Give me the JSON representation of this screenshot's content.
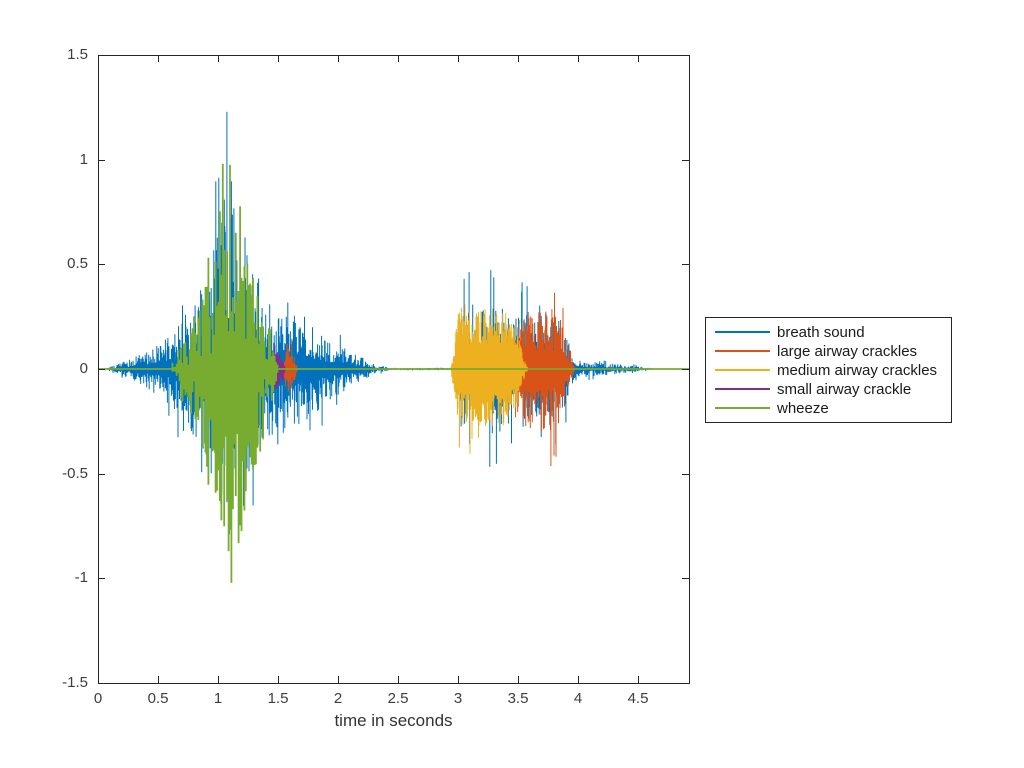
{
  "window": {
    "background": "#ffffff"
  },
  "chart_data": {
    "type": "line",
    "subtype": "audio-waveform",
    "title": "",
    "xlabel": "time in seconds",
    "ylabel": "",
    "xlim": [
      0,
      4.925
    ],
    "ylim": [
      -1.5,
      1.5
    ],
    "grid": false,
    "axis_color": "#262626",
    "tick_label_color": "#3d3d3d",
    "xticks": [
      0,
      0.5,
      1,
      1.5,
      2,
      2.5,
      3,
      3.5,
      4,
      4.5
    ],
    "xtick_labels": [
      "0",
      "0.5",
      "1",
      "1.5",
      "2",
      "2.5",
      "3",
      "3.5",
      "4",
      "4.5"
    ],
    "yticks": [
      -1.5,
      -1,
      -0.5,
      0,
      0.5,
      1,
      1.5
    ],
    "ytick_labels": [
      "-1.5",
      "-1",
      "-0.5",
      "0",
      "0.5",
      "1",
      "1.5"
    ],
    "legend": {
      "position": "right-outside",
      "border_color": "#262626",
      "background": "#ffffff"
    },
    "series": [
      {
        "name": "breath sound",
        "color": "#0072BD",
        "line_width": 1,
        "sample_step": 0.0042,
        "seed": 7,
        "body_min": 0.22,
        "shape": 2.2,
        "spike_prob": 0.035,
        "spike_gain": 1.35,
        "bottom_gain": 1.0,
        "max_amp": 1.23,
        "envelope_segments": [
          [
            [
              0.07,
              0.005
            ],
            [
              0.2,
              0.03
            ],
            [
              0.3,
              0.055
            ],
            [
              0.4,
              0.09
            ],
            [
              0.5,
              0.13
            ],
            [
              0.6,
              0.17
            ],
            [
              0.68,
              0.22
            ],
            [
              0.75,
              0.3
            ],
            [
              0.82,
              0.36
            ],
            [
              0.9,
              0.44
            ],
            [
              0.97,
              0.58
            ],
            [
              1.03,
              0.75
            ],
            [
              1.08,
              0.92
            ],
            [
              1.12,
              0.9
            ],
            [
              1.17,
              0.8
            ],
            [
              1.22,
              0.65
            ],
            [
              1.28,
              0.5
            ],
            [
              1.35,
              0.42
            ],
            [
              1.42,
              0.34
            ],
            [
              1.5,
              0.3
            ],
            [
              1.58,
              0.34
            ],
            [
              1.65,
              0.32
            ],
            [
              1.72,
              0.28
            ],
            [
              1.8,
              0.22
            ],
            [
              1.88,
              0.17
            ],
            [
              1.95,
              0.14
            ],
            [
              2.05,
              0.11
            ],
            [
              2.15,
              0.07
            ],
            [
              2.25,
              0.04
            ],
            [
              2.35,
              0.015
            ],
            [
              2.45,
              0.006
            ]
          ],
          [
            [
              2.45,
              0.005
            ],
            [
              2.95,
              0.007
            ]
          ],
          [
            [
              2.95,
              0.02
            ],
            [
              3.0,
              0.18
            ],
            [
              3.05,
              0.28
            ],
            [
              3.12,
              0.32
            ],
            [
              3.2,
              0.3
            ],
            [
              3.3,
              0.32
            ],
            [
              3.4,
              0.28
            ],
            [
              3.5,
              0.3
            ],
            [
              3.6,
              0.27
            ],
            [
              3.7,
              0.26
            ],
            [
              3.78,
              0.28
            ],
            [
              3.85,
              0.24
            ],
            [
              3.9,
              0.18
            ],
            [
              3.95,
              0.08
            ],
            [
              4.0,
              0.045
            ],
            [
              4.1,
              0.035
            ],
            [
              4.25,
              0.028
            ],
            [
              4.4,
              0.02
            ],
            [
              4.52,
              0.012
            ],
            [
              4.62,
              0.005
            ]
          ]
        ]
      },
      {
        "name": "large airway crackles",
        "color": "#D95319",
        "line_width": 1,
        "sample_step": 0.0042,
        "seed": 11,
        "body_min": 0.3,
        "shape": 1.6,
        "spike_prob": 0.05,
        "spike_gain": 1.5,
        "bottom_gain": 1.05,
        "max_amp": 0.46,
        "envelope_segments": [
          [
            [
              1.53,
              0.01
            ],
            [
              1.56,
              0.09
            ],
            [
              1.58,
              0.13
            ],
            [
              1.6,
              0.1
            ],
            [
              1.63,
              0.07
            ],
            [
              1.66,
              0.02
            ]
          ],
          [
            [
              3.43,
              0.01
            ],
            [
              3.47,
              0.12
            ],
            [
              3.52,
              0.26
            ],
            [
              3.56,
              0.3
            ],
            [
              3.62,
              0.26
            ],
            [
              3.68,
              0.3
            ],
            [
              3.74,
              0.28
            ],
            [
              3.77,
              0.31
            ],
            [
              3.82,
              0.27
            ],
            [
              3.86,
              0.24
            ],
            [
              3.9,
              0.16
            ],
            [
              3.94,
              0.06
            ],
            [
              3.97,
              0.015
            ]
          ]
        ]
      },
      {
        "name": "medium airway crackles",
        "color": "#EDB120",
        "line_width": 1,
        "sample_step": 0.0042,
        "seed": 23,
        "body_min": 0.38,
        "shape": 1.3,
        "spike_prob": 0.045,
        "spike_gain": 1.32,
        "bottom_gain": 0.95,
        "max_amp": 0.44,
        "envelope_segments": [
          [
            [
              2.94,
              0.01
            ],
            [
              2.97,
              0.12
            ],
            [
              3.0,
              0.28
            ],
            [
              3.04,
              0.32
            ],
            [
              3.09,
              0.29
            ],
            [
              3.14,
              0.31
            ],
            [
              3.19,
              0.29
            ],
            [
              3.24,
              0.3
            ],
            [
              3.3,
              0.32
            ],
            [
              3.36,
              0.29
            ],
            [
              3.42,
              0.27
            ],
            [
              3.47,
              0.22
            ],
            [
              3.52,
              0.12
            ],
            [
              3.56,
              0.03
            ],
            [
              3.58,
              0.008
            ]
          ]
        ]
      },
      {
        "name": "small airway crackle",
        "color": "#7E2F8E",
        "line_width": 1,
        "sample_step": 0.0042,
        "seed": 31,
        "body_min": 0.35,
        "shape": 1.5,
        "spike_prob": 0.04,
        "spike_gain": 1.3,
        "bottom_gain": 1.05,
        "max_amp": 0.14,
        "envelope_segments": [
          [
            [
              1.41,
              0.01
            ],
            [
              1.44,
              0.06
            ],
            [
              1.47,
              0.1
            ],
            [
              1.5,
              0.09
            ],
            [
              1.53,
              0.06
            ],
            [
              1.56,
              0.02
            ]
          ]
        ]
      },
      {
        "name": "wheeze",
        "color": "#77AC30",
        "line_width": 1.8,
        "sample_step": 0.012,
        "seed": 43,
        "body_min": 0.12,
        "shape": 0.9,
        "spike_prob": 0.05,
        "spike_gain": 1.08,
        "bottom_gain": 1.05,
        "max_amp": 1.09,
        "envelope_segments": [
          [
            [
              0.62,
              0.03
            ],
            [
              0.67,
              0.1
            ],
            [
              0.72,
              0.18
            ],
            [
              0.76,
              0.14
            ],
            [
              0.8,
              0.3
            ],
            [
              0.84,
              0.25
            ],
            [
              0.88,
              0.42
            ],
            [
              0.92,
              0.55
            ],
            [
              0.95,
              0.45
            ],
            [
              0.99,
              0.7
            ],
            [
              1.03,
              0.9
            ],
            [
              1.06,
              1.0
            ],
            [
              1.1,
              1.02
            ],
            [
              1.14,
              0.92
            ],
            [
              1.18,
              0.8
            ],
            [
              1.22,
              0.68
            ],
            [
              1.26,
              0.55
            ],
            [
              1.3,
              0.55
            ],
            [
              1.34,
              0.42
            ],
            [
              1.38,
              0.32
            ],
            [
              1.43,
              0.22
            ],
            [
              1.47,
              0.1
            ],
            [
              1.5,
              0.02
            ]
          ]
        ]
      }
    ]
  }
}
